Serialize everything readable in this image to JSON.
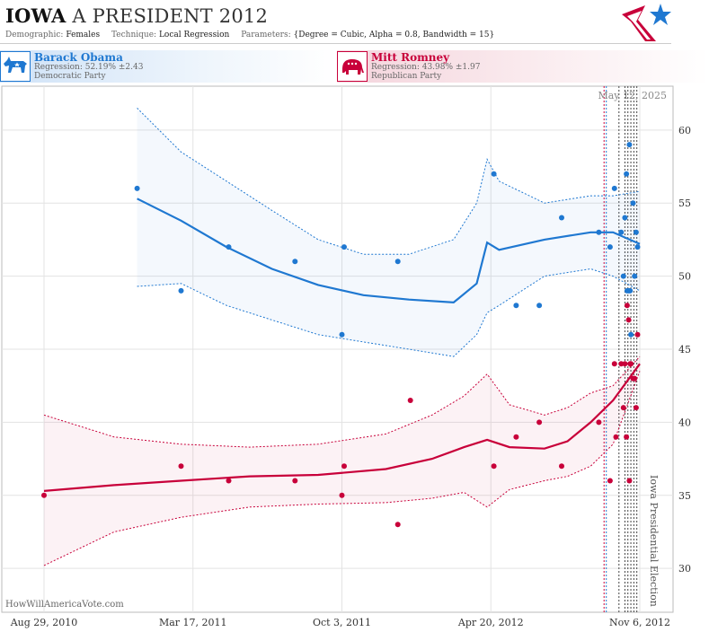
{
  "header": {
    "state": "IOWA",
    "race": "A PRESIDENT 2012",
    "demographic_label": "Demographic:",
    "demographic": "Females",
    "technique_label": "Technique:",
    "technique": "Local Regression",
    "parameters_label": "Parameters:",
    "parameters": "{Degree = Cubic, Alpha = 0.8, Bandwidth = 15}"
  },
  "candidates": {
    "dem": {
      "name": "Barack Obama",
      "regression": "Regression: 52.19% ±2.43",
      "party": "Democratic Party",
      "color": "#1f78d1",
      "icon": "donkey-icon"
    },
    "rep": {
      "name": "Mitt Romney",
      "regression": "Regression: 43.98% ±1.97",
      "party": "Republican Party",
      "color": "#c8003a",
      "icon": "elephant-icon"
    }
  },
  "credit": "HowWillAmericaVote.com",
  "chart_data": {
    "type": "scatter",
    "x_ticks": [
      "Aug 29, 2010",
      "Mar 17, 2011",
      "Oct 3, 2011",
      "Apr 20, 2012",
      "Nov 6, 2012"
    ],
    "xlim": [
      "2010-08-29",
      "2012-11-06"
    ],
    "ylim": [
      27,
      63
    ],
    "y_ticks": [
      30,
      35,
      40,
      45,
      50,
      55,
      60
    ],
    "date_label": "May 12, 2025",
    "election_label": "Iowa Presidential Election",
    "grid": true,
    "event_lines": [
      {
        "x": "2012-09-19",
        "color": "#c8003a"
      },
      {
        "x": "2012-09-22",
        "color": "#1f78d1"
      },
      {
        "x": "2012-10-09",
        "color": "#444"
      },
      {
        "x": "2012-10-17",
        "color": "#444"
      },
      {
        "x": "2012-10-21",
        "color": "#444"
      },
      {
        "x": "2012-10-25",
        "color": "#444"
      },
      {
        "x": "2012-10-29",
        "color": "#444"
      },
      {
        "x": "2012-11-02",
        "color": "#444"
      }
    ],
    "series": [
      {
        "name": "Barack Obama",
        "color": "#1f78d1",
        "points": [
          [
            "2011-01-01",
            56
          ],
          [
            "2011-03-01",
            49
          ],
          [
            "2011-05-04",
            52
          ],
          [
            "2011-08-01",
            51
          ],
          [
            "2011-10-03",
            46
          ],
          [
            "2011-10-06",
            52
          ],
          [
            "2011-12-17",
            51
          ],
          [
            "2012-04-24",
            57
          ],
          [
            "2012-05-24",
            48
          ],
          [
            "2012-06-24",
            48
          ],
          [
            "2012-07-24",
            54
          ],
          [
            "2012-09-12",
            53
          ],
          [
            "2012-09-27",
            52
          ],
          [
            "2012-10-03",
            56
          ],
          [
            "2012-10-12",
            53
          ],
          [
            "2012-10-15",
            50
          ],
          [
            "2012-10-17",
            54
          ],
          [
            "2012-10-19",
            57
          ],
          [
            "2012-10-20",
            49
          ],
          [
            "2012-10-22",
            49
          ],
          [
            "2012-10-23",
            59
          ],
          [
            "2012-10-24",
            49
          ],
          [
            "2012-10-25",
            46
          ],
          [
            "2012-10-28",
            55
          ],
          [
            "2012-10-30",
            50
          ],
          [
            "2012-11-01",
            53
          ],
          [
            "2012-11-03",
            52
          ]
        ],
        "trend": [
          [
            "2011-01-01",
            55.3
          ],
          [
            "2011-03-01",
            53.8
          ],
          [
            "2011-05-01",
            52.0
          ],
          [
            "2011-07-01",
            50.5
          ],
          [
            "2011-09-01",
            49.4
          ],
          [
            "2011-11-01",
            48.7
          ],
          [
            "2012-01-01",
            48.4
          ],
          [
            "2012-03-01",
            48.2
          ],
          [
            "2012-04-01",
            49.5
          ],
          [
            "2012-04-15",
            52.3
          ],
          [
            "2012-05-01",
            51.8
          ],
          [
            "2012-07-01",
            52.5
          ],
          [
            "2012-09-01",
            53.0
          ],
          [
            "2012-10-01",
            53.0
          ],
          [
            "2012-11-06",
            52.2
          ]
        ],
        "upper": [
          [
            "2011-01-01",
            61.5
          ],
          [
            "2011-03-01",
            58.5
          ],
          [
            "2011-05-01",
            56.5
          ],
          [
            "2011-07-01",
            54.5
          ],
          [
            "2011-09-01",
            52.5
          ],
          [
            "2011-11-01",
            51.5
          ],
          [
            "2012-01-01",
            51.5
          ],
          [
            "2012-03-01",
            52.5
          ],
          [
            "2012-04-01",
            55.0
          ],
          [
            "2012-04-15",
            58.0
          ],
          [
            "2012-05-01",
            56.5
          ],
          [
            "2012-07-01",
            55.0
          ],
          [
            "2012-09-01",
            55.5
          ],
          [
            "2012-10-01",
            55.5
          ],
          [
            "2012-11-06",
            55.8
          ]
        ],
        "lower": [
          [
            "2011-01-01",
            49.3
          ],
          [
            "2011-03-01",
            49.5
          ],
          [
            "2011-05-01",
            48.0
          ],
          [
            "2011-07-01",
            47.0
          ],
          [
            "2011-09-01",
            46.0
          ],
          [
            "2011-11-01",
            45.5
          ],
          [
            "2012-01-01",
            45.0
          ],
          [
            "2012-03-01",
            44.5
          ],
          [
            "2012-04-01",
            46.0
          ],
          [
            "2012-04-15",
            47.5
          ],
          [
            "2012-05-01",
            48.0
          ],
          [
            "2012-07-01",
            50.0
          ],
          [
            "2012-09-01",
            50.5
          ],
          [
            "2012-10-01",
            50.0
          ],
          [
            "2012-11-06",
            49.0
          ]
        ]
      },
      {
        "name": "Mitt Romney",
        "color": "#c8003a",
        "points": [
          [
            "2010-08-29",
            35
          ],
          [
            "2011-03-01",
            37
          ],
          [
            "2011-05-04",
            36
          ],
          [
            "2011-08-01",
            36
          ],
          [
            "2011-10-03",
            35
          ],
          [
            "2011-10-06",
            37
          ],
          [
            "2011-12-17",
            33
          ],
          [
            "2012-01-03",
            41.5
          ],
          [
            "2012-04-24",
            37
          ],
          [
            "2012-05-24",
            39
          ],
          [
            "2012-06-24",
            40
          ],
          [
            "2012-07-24",
            37
          ],
          [
            "2012-09-12",
            40
          ],
          [
            "2012-09-27",
            36
          ],
          [
            "2012-10-03",
            44
          ],
          [
            "2012-10-05",
            39
          ],
          [
            "2012-10-12",
            44
          ],
          [
            "2012-10-15",
            41
          ],
          [
            "2012-10-17",
            44
          ],
          [
            "2012-10-19",
            39
          ],
          [
            "2012-10-20",
            48
          ],
          [
            "2012-10-22",
            47
          ],
          [
            "2012-10-23",
            36
          ],
          [
            "2012-10-24",
            44
          ],
          [
            "2012-10-25",
            44
          ],
          [
            "2012-10-28",
            43
          ],
          [
            "2012-10-30",
            43
          ],
          [
            "2012-11-01",
            41
          ],
          [
            "2012-11-03",
            46
          ]
        ],
        "trend": [
          [
            "2010-08-29",
            35.3
          ],
          [
            "2010-12-01",
            35.7
          ],
          [
            "2011-03-01",
            36.0
          ],
          [
            "2011-06-01",
            36.3
          ],
          [
            "2011-09-01",
            36.4
          ],
          [
            "2011-12-01",
            36.8
          ],
          [
            "2012-02-01",
            37.5
          ],
          [
            "2012-03-15",
            38.3
          ],
          [
            "2012-04-15",
            38.8
          ],
          [
            "2012-05-15",
            38.3
          ],
          [
            "2012-07-01",
            38.2
          ],
          [
            "2012-08-01",
            38.7
          ],
          [
            "2012-09-01",
            40.0
          ],
          [
            "2012-10-01",
            41.5
          ],
          [
            "2012-11-06",
            44.0
          ]
        ],
        "upper": [
          [
            "2010-08-29",
            40.5
          ],
          [
            "2010-12-01",
            39.0
          ],
          [
            "2011-03-01",
            38.5
          ],
          [
            "2011-06-01",
            38.3
          ],
          [
            "2011-09-01",
            38.5
          ],
          [
            "2011-12-01",
            39.2
          ],
          [
            "2012-02-01",
            40.5
          ],
          [
            "2012-03-15",
            41.8
          ],
          [
            "2012-04-15",
            43.3
          ],
          [
            "2012-05-15",
            41.2
          ],
          [
            "2012-07-01",
            40.5
          ],
          [
            "2012-08-01",
            41.0
          ],
          [
            "2012-09-01",
            42.0
          ],
          [
            "2012-10-01",
            42.5
          ],
          [
            "2012-11-06",
            44.5
          ]
        ],
        "lower": [
          [
            "2010-08-29",
            30.2
          ],
          [
            "2010-12-01",
            32.5
          ],
          [
            "2011-03-01",
            33.5
          ],
          [
            "2011-06-01",
            34.2
          ],
          [
            "2011-09-01",
            34.4
          ],
          [
            "2011-12-01",
            34.5
          ],
          [
            "2012-02-01",
            34.8
          ],
          [
            "2012-03-15",
            35.2
          ],
          [
            "2012-04-15",
            34.2
          ],
          [
            "2012-05-15",
            35.4
          ],
          [
            "2012-07-01",
            36.0
          ],
          [
            "2012-08-01",
            36.3
          ],
          [
            "2012-09-01",
            37.0
          ],
          [
            "2012-10-01",
            38.5
          ],
          [
            "2012-11-06",
            43.5
          ]
        ]
      }
    ]
  }
}
